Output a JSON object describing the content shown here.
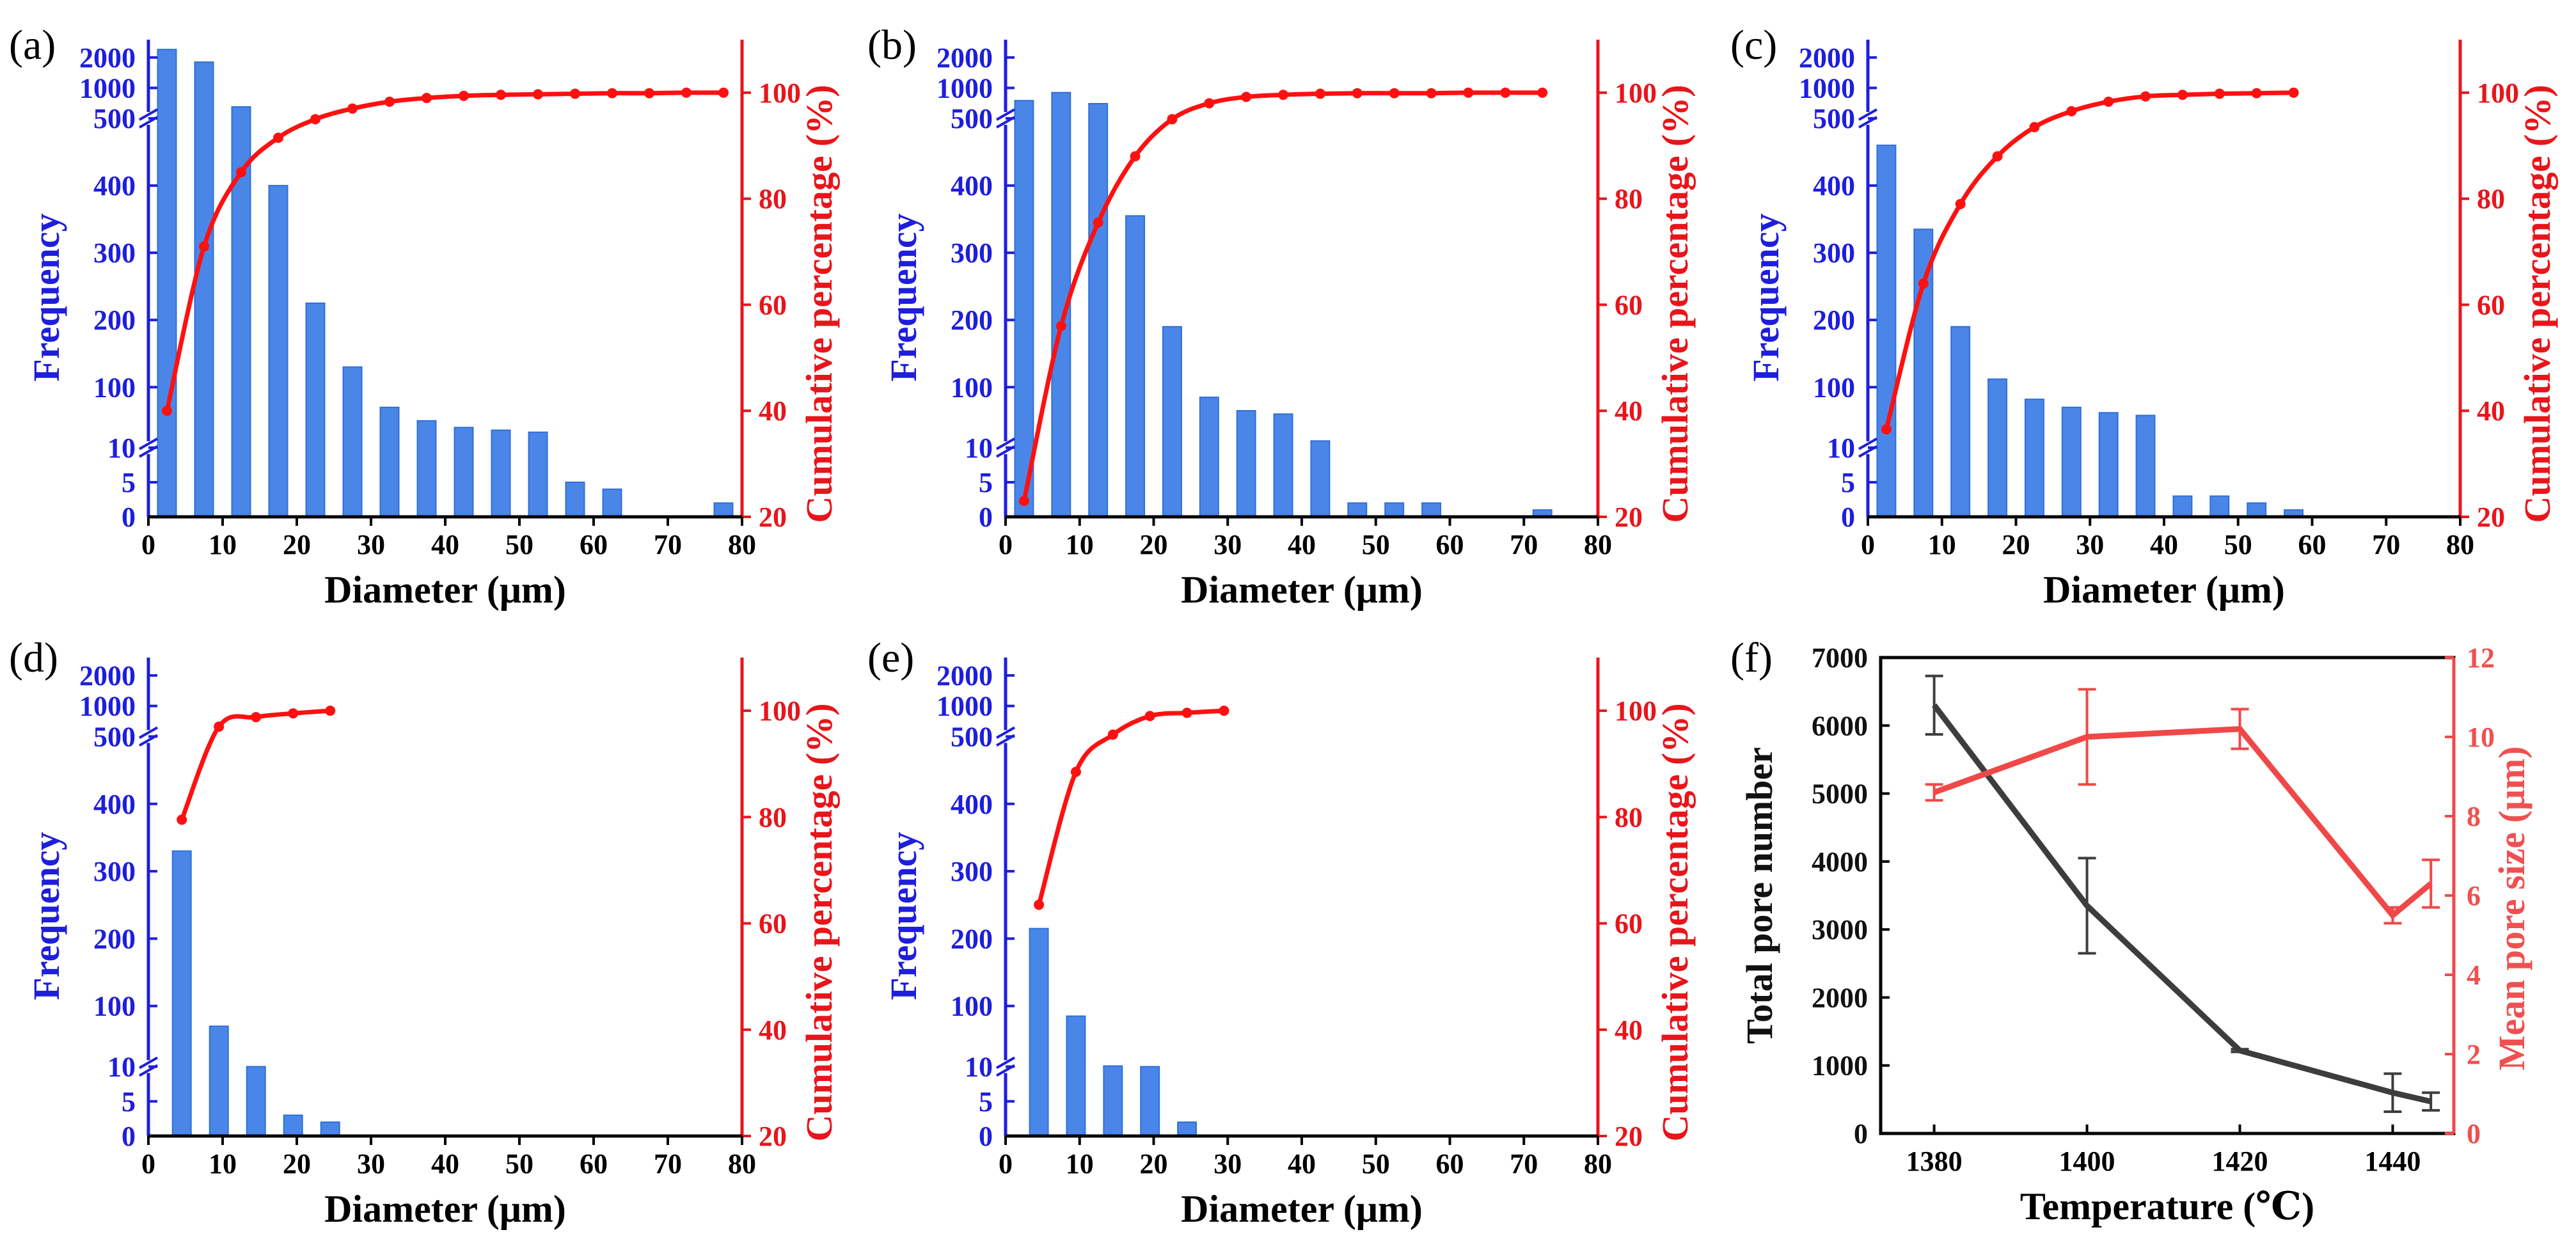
{
  "colors": {
    "bar": "#4a86e8",
    "bar_edge": "#2f6fd8",
    "cumulative_line": "#ff1010",
    "left_axis": "#1e1edc",
    "right_axis": "#e8151b",
    "pore_number_line": "#3d3d3d",
    "pore_size_line": "#f04848"
  },
  "chart_data": [
    {
      "id": "a",
      "panel_label": "(a)",
      "type": "bar",
      "xlabel": "Diameter (μm)",
      "ylabel": "Frequency",
      "y2label": "Cumulative percentage (%)",
      "xlim": [
        0,
        80
      ],
      "xticks": [
        "0",
        "10",
        "20",
        "30",
        "40",
        "50",
        "60",
        "70",
        "80"
      ],
      "y_scale": "broken: linear 0-10, linear 10-500, log 500-3000",
      "yticks": [
        "0",
        "5",
        "10",
        "100",
        "200",
        "300",
        "400",
        "500",
        "1000",
        "2000"
      ],
      "y2lim": [
        20,
        110
      ],
      "y2ticks": [
        "20",
        "40",
        "60",
        "80",
        "100"
      ],
      "bar_width": 2.5,
      "bar_centers": [
        2.5,
        7.5,
        12.5,
        17.5,
        22.5,
        27.5,
        32.5,
        37.5,
        42.5,
        47.5,
        52.5,
        57.5,
        62.5,
        77.5
      ],
      "frequency": [
        2400,
        1800,
        650,
        400,
        225,
        130,
        70,
        50,
        40,
        36,
        33,
        5,
        4,
        2
      ],
      "cumulative_x": [
        2.5,
        7.5,
        12.5,
        17.5,
        22.5,
        27.5,
        32.5,
        37.5,
        42.5,
        47.5,
        52.5,
        57.5,
        62.5,
        67.5,
        72.5,
        77.5
      ],
      "cumulative_percent": [
        40,
        71,
        85,
        91.5,
        95,
        97,
        98.3,
        99,
        99.4,
        99.6,
        99.7,
        99.8,
        99.9,
        99.9,
        100,
        100
      ]
    },
    {
      "id": "b",
      "panel_label": "(b)",
      "type": "bar",
      "xlabel": "Diameter (μm)",
      "ylabel": "Frequency",
      "y2label": "Cumulative percentage (%)",
      "xlim": [
        0,
        80
      ],
      "xticks": [
        "0",
        "10",
        "20",
        "30",
        "40",
        "50",
        "60",
        "70",
        "80"
      ],
      "y_scale": "broken: linear 0-10, linear 10-500, log 500-3000",
      "yticks": [
        "0",
        "5",
        "10",
        "100",
        "200",
        "300",
        "400",
        "500",
        "1000",
        "2000"
      ],
      "y2lim": [
        20,
        110
      ],
      "y2ticks": [
        "20",
        "40",
        "60",
        "80",
        "100"
      ],
      "bar_width": 2.5,
      "bar_centers": [
        2.5,
        7.5,
        12.5,
        17.5,
        22.5,
        27.5,
        32.5,
        37.5,
        42.5,
        47.5,
        52.5,
        57.5,
        72.5
      ],
      "frequency": [
        750,
        900,
        700,
        355,
        190,
        85,
        65,
        60,
        20,
        2,
        2,
        2,
        1
      ],
      "cumulative_x": [
        2.5,
        7.5,
        12.5,
        17.5,
        22.5,
        27.5,
        32.5,
        37.5,
        42.5,
        47.5,
        52.5,
        57.5,
        62.5,
        67.5,
        72.5
      ],
      "cumulative_percent": [
        23,
        56,
        75.5,
        88,
        95,
        98,
        99.2,
        99.6,
        99.8,
        99.9,
        99.9,
        99.9,
        100,
        100,
        100
      ]
    },
    {
      "id": "c",
      "panel_label": "(c)",
      "type": "bar",
      "xlabel": "Diameter (μm)",
      "ylabel": "Frequency",
      "y2label": "Cumulative percentage (%)",
      "xlim": [
        0,
        80
      ],
      "xticks": [
        "0",
        "10",
        "20",
        "30",
        "40",
        "50",
        "60",
        "70",
        "80"
      ],
      "y_scale": "broken: linear 0-10, linear 10-500, log 500-3000",
      "yticks": [
        "0",
        "5",
        "10",
        "100",
        "200",
        "300",
        "400",
        "500",
        "1000",
        "2000"
      ],
      "y2lim": [
        20,
        110
      ],
      "y2ticks": [
        "20",
        "40",
        "60",
        "80",
        "100"
      ],
      "bar_width": 2.5,
      "bar_centers": [
        2.5,
        7.5,
        12.5,
        17.5,
        22.5,
        27.5,
        32.5,
        37.5,
        42.5,
        47.5,
        52.5,
        57.5
      ],
      "frequency": [
        460,
        335,
        190,
        112,
        82,
        70,
        62,
        58,
        3,
        3,
        2,
        1
      ],
      "cumulative_x": [
        2.5,
        7.5,
        12.5,
        17.5,
        22.5,
        27.5,
        32.5,
        37.5,
        42.5,
        47.5,
        52.5,
        57.5
      ],
      "cumulative_percent": [
        36.5,
        64,
        79,
        88,
        93.5,
        96.5,
        98.3,
        99.3,
        99.6,
        99.8,
        99.9,
        100
      ]
    },
    {
      "id": "d",
      "panel_label": "(d)",
      "type": "bar",
      "xlabel": "Diameter (μm)",
      "ylabel": "Frequency",
      "y2label": "Cumulative percentage (%)",
      "xlim": [
        0,
        80
      ],
      "xticks": [
        "0",
        "10",
        "20",
        "30",
        "40",
        "50",
        "60",
        "70",
        "80"
      ],
      "y_scale": "broken: linear 0-10, linear 10-500, log 500-3000",
      "yticks": [
        "0",
        "5",
        "10",
        "100",
        "200",
        "300",
        "400",
        "500",
        "1000",
        "2000"
      ],
      "y2lim": [
        20,
        110
      ],
      "y2ticks": [
        "20",
        "40",
        "60",
        "80",
        "100"
      ],
      "bar_width": 2.5,
      "bar_centers": [
        4.5,
        9.5,
        14.5,
        19.5,
        24.5
      ],
      "frequency": [
        330,
        70,
        10,
        3,
        2
      ],
      "cumulative_x": [
        4.5,
        9.5,
        14.5,
        19.5,
        24.5
      ],
      "cumulative_percent": [
        79.5,
        97,
        98.8,
        99.5,
        100
      ]
    },
    {
      "id": "e",
      "panel_label": "(e)",
      "type": "bar",
      "xlabel": "Diameter (μm)",
      "ylabel": "Frequency",
      "y2label": "Cumulative percentage (%)",
      "xlim": [
        0,
        80
      ],
      "xticks": [
        "0",
        "10",
        "20",
        "30",
        "40",
        "50",
        "60",
        "70",
        "80"
      ],
      "y_scale": "broken: linear 0-10, linear 10-500, log 500-3000",
      "yticks": [
        "0",
        "5",
        "10",
        "100",
        "200",
        "300",
        "400",
        "500",
        "1000",
        "2000"
      ],
      "y2lim": [
        20,
        110
      ],
      "y2ticks": [
        "20",
        "40",
        "60",
        "80",
        "100"
      ],
      "bar_width": 2.5,
      "bar_centers": [
        4.5,
        9.5,
        14.5,
        19.5,
        24.5
      ],
      "frequency": [
        215,
        85,
        11,
        10,
        2
      ],
      "cumulative_x": [
        4.5,
        9.5,
        14.5,
        19.5,
        24.5,
        29.5
      ],
      "cumulative_percent": [
        63.5,
        88.5,
        95.5,
        99,
        99.6,
        100
      ]
    },
    {
      "id": "f",
      "panel_label": "(f)",
      "type": "line",
      "xlabel": "Temperature (℃)",
      "ylabel": "Total pore number",
      "y2label": "Mean pore size (μm)",
      "xlim": [
        1373,
        1448
      ],
      "xticks": [
        "1380",
        "1400",
        "1420",
        "1440"
      ],
      "xtick_values": [
        1380,
        1400,
        1420,
        1440
      ],
      "ylim": [
        0,
        7000
      ],
      "yticks": [
        "0",
        "1000",
        "2000",
        "3000",
        "4000",
        "5000",
        "6000",
        "7000"
      ],
      "y2lim": [
        0,
        12
      ],
      "y2ticks": [
        "0",
        "2",
        "4",
        "6",
        "8",
        "10",
        "12"
      ],
      "series": [
        {
          "name": "Total pore number",
          "axis": "left",
          "x": [
            1380,
            1400,
            1420,
            1440,
            1445
          ],
          "y": [
            6300,
            3350,
            1220,
            600,
            470
          ],
          "error": [
            430,
            700,
            20,
            280,
            130
          ]
        },
        {
          "name": "Mean pore size",
          "axis": "right",
          "x": [
            1380,
            1400,
            1420,
            1440,
            1445
          ],
          "y": [
            8.6,
            10.0,
            10.2,
            5.5,
            6.3
          ],
          "error": [
            0.2,
            1.2,
            0.5,
            0.2,
            0.6
          ]
        }
      ]
    }
  ]
}
